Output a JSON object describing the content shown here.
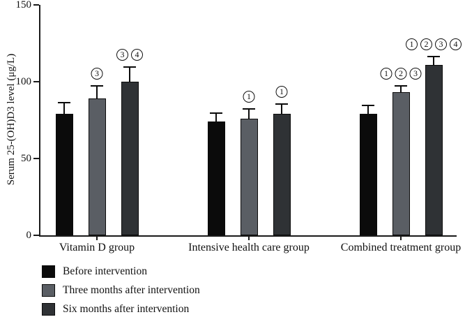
{
  "chart_data": {
    "type": "bar",
    "title": "",
    "ylabel": "Serum 25-(OH)D3 level (μg/L)",
    "xlabel": "",
    "ylim": [
      0,
      150
    ],
    "yticks": [
      0,
      50,
      100,
      150
    ],
    "grid": false,
    "legend_position": "bottom-left",
    "annotation_style": "circled-numbers-above-error-bars",
    "categories": [
      "Vitamin D group",
      "Intensive health care group",
      "Combined treatment group"
    ],
    "series": [
      {
        "name": "Before intervention",
        "color": "#0b0b0b",
        "values": [
          79,
          74,
          79
        ],
        "errors": [
          7,
          5,
          5
        ],
        "annotations": [
          [],
          [],
          []
        ]
      },
      {
        "name": "Three months after intervention",
        "color": "#5a5e64",
        "values": [
          89,
          76,
          93
        ],
        "errors": [
          8,
          6,
          4
        ],
        "annotations": [
          [
            "3"
          ],
          [
            "1"
          ],
          [
            "1",
            "2",
            "3"
          ]
        ]
      },
      {
        "name": "Six months after intervention",
        "color": "#2f3235",
        "values": [
          100,
          79,
          111
        ],
        "errors": [
          9,
          6,
          5
        ],
        "annotations": [
          [
            "3",
            "4"
          ],
          [
            "1"
          ],
          [
            "1",
            "2",
            "3",
            "4"
          ]
        ]
      }
    ]
  }
}
